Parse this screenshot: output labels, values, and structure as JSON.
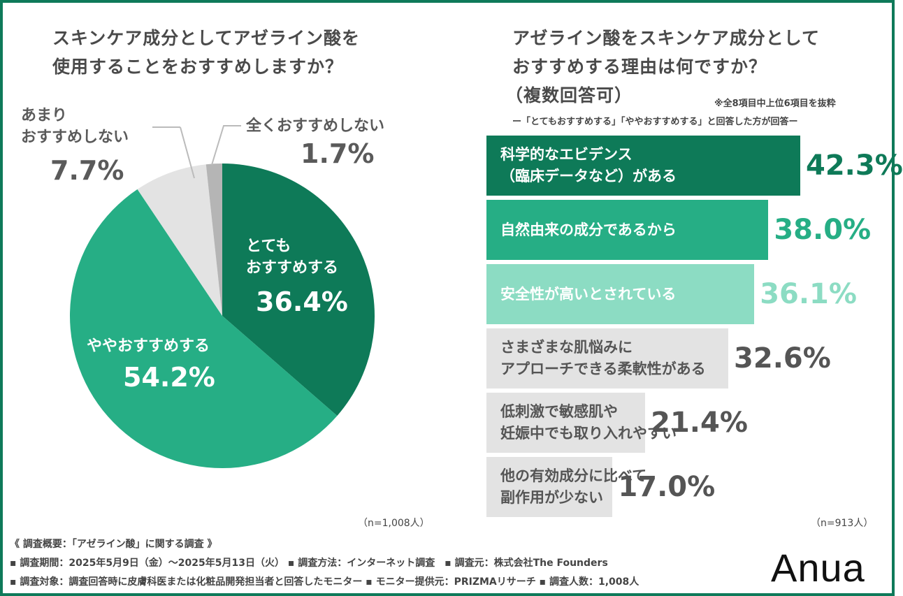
{
  "left": {
    "title_lines": [
      "スキンケア成分としてアゼライン酸を",
      "使用することをおすすめしますか？"
    ],
    "n_label": "（n=1,008人）"
  },
  "right": {
    "title_lines": [
      "アゼライン酸をスキンケア成分として",
      "おすすめする理由は何ですか？",
      "（複数回答可）"
    ],
    "note": "※全8項目中上位6項目を抜粋",
    "subtitle": "ー「とてもおすすめする」「ややおすすめする」と回答した方が回答ー",
    "n_label": "（n=913人）"
  },
  "chart_data": [
    {
      "type": "pie",
      "title": "スキンケア成分としてアゼライン酸を使用することをおすすめしますか？",
      "slices": [
        {
          "label": "とても\nおすすめする",
          "label_lines": [
            "とても",
            "おすすめする"
          ],
          "value": 36.4,
          "value_label": "36.4%",
          "color": "#0e7a58"
        },
        {
          "label": "ややおすすめする",
          "label_lines": [
            "ややおすすめする"
          ],
          "value": 54.2,
          "value_label": "54.2%",
          "color": "#26ae85"
        },
        {
          "label": "あまりおすすめしない",
          "label_lines": [
            "あまり",
            "おすすめしない"
          ],
          "value": 7.7,
          "value_label": "7.7%",
          "color": "#e3e3e3"
        },
        {
          "label": "全くおすすめしない",
          "label_lines": [
            "全くおすすめしない"
          ],
          "value": 1.7,
          "value_label": "1.7%",
          "color": "#b5b5b5"
        }
      ]
    },
    {
      "type": "bar",
      "orientation": "horizontal",
      "title": "アゼライン酸をスキンケア成分としておすすめする理由は何ですか？（複数回答可）",
      "bars": [
        {
          "label_lines": [
            "科学的なエビデンス",
            "（臨床データなど）がある"
          ],
          "value": 42.3,
          "value_label": "42.3%",
          "color": "#0e7a58",
          "text_color": "#ffffff",
          "value_color": "#0e7a58"
        },
        {
          "label_lines": [
            "自然由来の成分であるから"
          ],
          "value": 38.0,
          "value_label": "38.0%",
          "color": "#26ae85",
          "text_color": "#ffffff",
          "value_color": "#26ae85"
        },
        {
          "label_lines": [
            "安全性が高いとされている"
          ],
          "value": 36.1,
          "value_label": "36.1%",
          "color": "#8cdcc3",
          "text_color": "#ffffff",
          "value_color": "#8cdcc3"
        },
        {
          "label_lines": [
            "さまざまな肌悩みに",
            "アプローチできる柔軟性がある"
          ],
          "value": 32.6,
          "value_label": "32.6%",
          "color": "#e3e3e3",
          "text_color": "#555555",
          "value_color": "#555555"
        },
        {
          "label_lines": [
            "低刺激で敏感肌や",
            "妊娠中でも取り入れやすい"
          ],
          "value": 21.4,
          "value_label": "21.4%",
          "color": "#e3e3e3",
          "text_color": "#555555",
          "value_color": "#555555"
        },
        {
          "label_lines": [
            "他の有効成分に比べて",
            "副作用が少ない"
          ],
          "value": 17.0,
          "value_label": "17.0%",
          "color": "#e3e3e3",
          "text_color": "#555555",
          "value_color": "#555555"
        }
      ]
    }
  ],
  "footer": {
    "heading": "《 調査概要：「アゼライン酸」に関する調査 》",
    "line1": "▪ 調査期間：2025年5月9日（金）～2025年5月13日（火） ▪ 調査方法：インターネット調査　▪ 調査元：株式会社The Founders",
    "line2": "▪ 調査対象：調査回答時に皮膚科医または化粧品開発担当者と回答したモニター ▪ モニター提供元：PRIZMAリサーチ ▪ 調査人数：1,008人",
    "logo": "Anua"
  },
  "colors": {
    "border": "#0f7a5a",
    "dark_green": "#0e7a58",
    "green": "#26ae85",
    "light_green": "#8cdcc3",
    "gray": "#e3e3e3"
  }
}
